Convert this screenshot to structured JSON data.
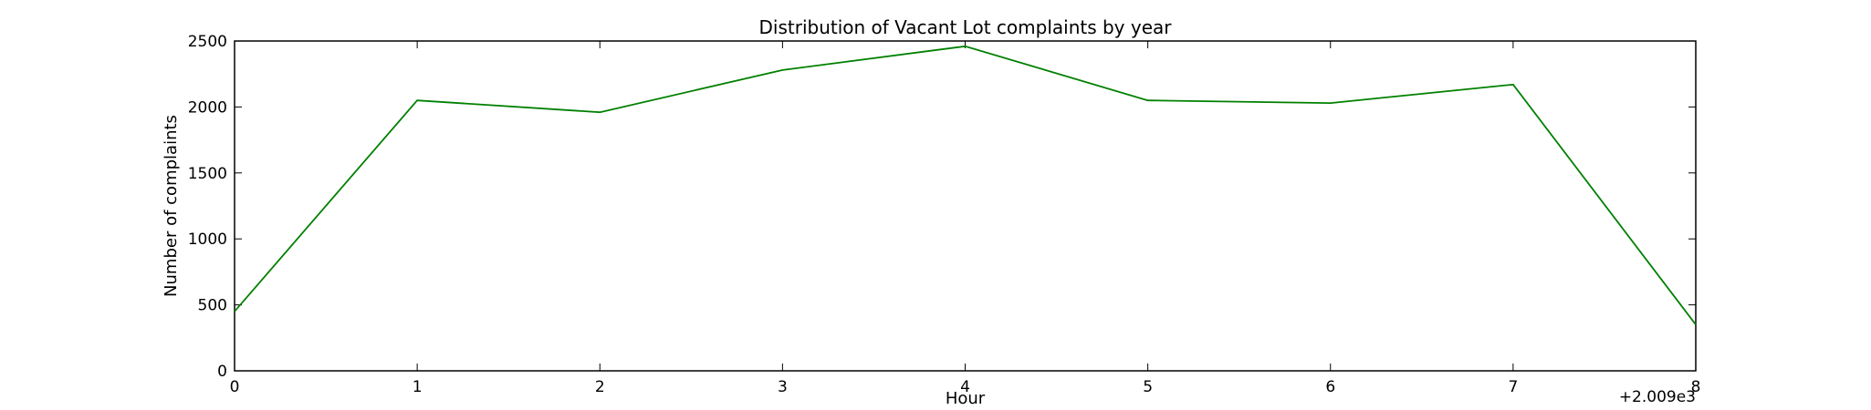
{
  "chart_data": {
    "type": "line",
    "title": "Distribution of  Vacant Lot complaints by year",
    "xlabel": "Hour",
    "ylabel": "Number of complaints",
    "x_offset_label": "+2.009e3",
    "x": [
      0,
      1,
      2,
      3,
      4,
      5,
      6,
      7,
      8
    ],
    "series": [
      {
        "name": "",
        "color": "#008000",
        "values": [
          450,
          2050,
          1960,
          2280,
          2460,
          2050,
          2030,
          2170,
          350
        ]
      }
    ],
    "xlim": [
      0,
      8
    ],
    "ylim": [
      0,
      2500
    ],
    "xticks": [
      0,
      1,
      2,
      3,
      4,
      5,
      6,
      7,
      8
    ],
    "yticks": [
      0,
      500,
      1000,
      1500,
      2000,
      2500
    ],
    "grid": false,
    "legend": "none"
  }
}
